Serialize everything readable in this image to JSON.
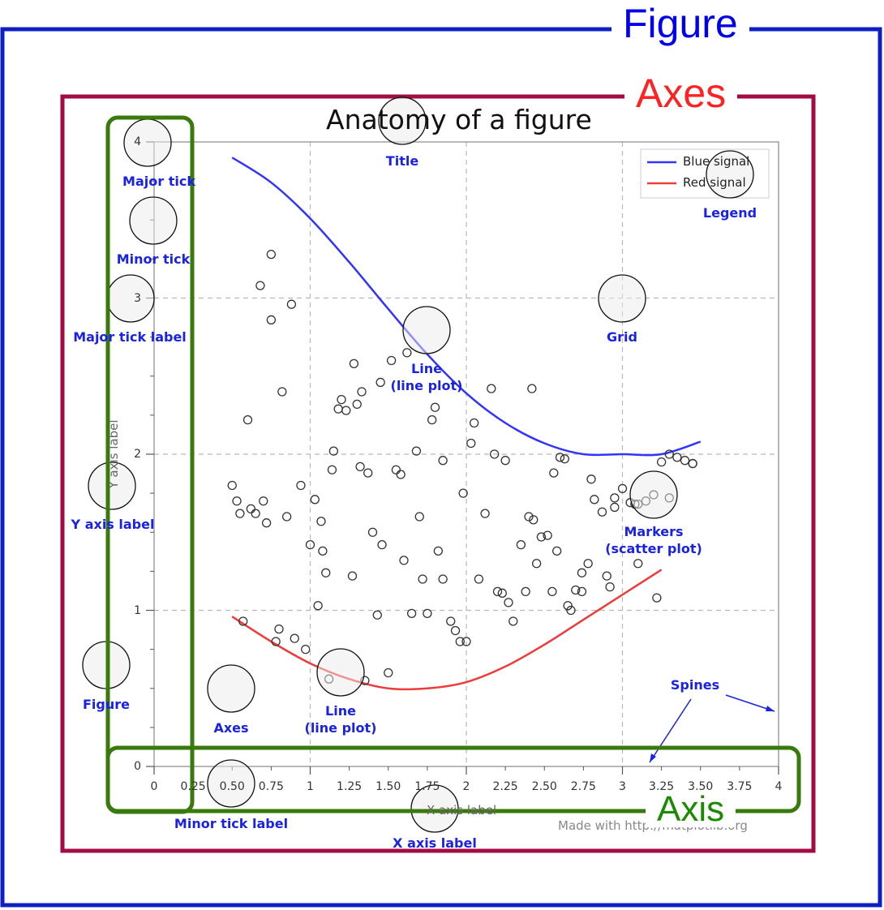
{
  "colors": {
    "figure_frame": "#0d1fc2",
    "axes_frame": "#a30b45",
    "axis_frame": "#3a7a0c",
    "annotation": "#1a22e6",
    "blue_signal": "#3333ff",
    "red_signal": "#ee3b3b",
    "grid": "#b8b8b8",
    "spines": "#a0a0a0",
    "markers": "#333333",
    "figure_label": "#0000ee",
    "axes_label": "#ff2222",
    "axis_label": "#1a8a00"
  },
  "frames": {
    "figure_label": "Figure",
    "axes_label": "Axes",
    "axis_label": "Axis"
  },
  "chart_data": {
    "type": "line",
    "title": "Anatomy of a figure",
    "xlabel": "X axis label",
    "ylabel": "Y axis label",
    "xlim": [
      0,
      4
    ],
    "ylim": [
      0,
      4
    ],
    "major_x_ticks": [
      "0",
      "1",
      "2",
      "3",
      "4"
    ],
    "minor_x_ticks": [
      "0.25",
      "0.50",
      "0.75",
      "1.25",
      "1.50",
      "1.75",
      "2.25",
      "2.50",
      "2.75",
      "3.25",
      "3.50",
      "3.75"
    ],
    "major_y_ticks": [
      "0",
      "1",
      "2",
      "3",
      "4"
    ],
    "grid": true,
    "legend_placement": "top-right",
    "series": [
      {
        "name": "Blue signal",
        "color": "#3333ff",
        "x": [
          0.5,
          0.75,
          1.0,
          1.25,
          1.5,
          1.75,
          2.0,
          2.25,
          2.5,
          2.75,
          3.0,
          3.25,
          3.5
        ],
        "y": [
          3.9,
          3.74,
          3.51,
          3.23,
          2.93,
          2.64,
          2.39,
          2.2,
          2.07,
          2.0,
          2.0,
          2.0,
          2.08
        ]
      },
      {
        "name": "Red signal",
        "color": "#ee3b3b",
        "x": [
          0.5,
          0.75,
          1.0,
          1.25,
          1.5,
          1.75,
          2.0,
          2.25,
          2.5,
          2.75,
          3.0,
          3.25
        ],
        "y": [
          0.96,
          0.8,
          0.66,
          0.56,
          0.5,
          0.5,
          0.54,
          0.64,
          0.78,
          0.94,
          1.1,
          1.26
        ]
      }
    ],
    "scatter": {
      "x": [
        0.5,
        0.53,
        0.57,
        0.62,
        0.68,
        0.72,
        0.75,
        0.78,
        0.82,
        0.85,
        0.9,
        0.94,
        0.97,
        1.0,
        1.03,
        1.07,
        1.08,
        1.12,
        1.14,
        1.18,
        1.2,
        1.23,
        1.27,
        1.3,
        1.32,
        1.35,
        1.37,
        1.4,
        1.43,
        1.46,
        1.5,
        1.55,
        1.58,
        1.62,
        1.65,
        1.68,
        1.72,
        1.75,
        1.78,
        1.82,
        1.85,
        1.9,
        1.93,
        1.96,
        2.0,
        2.03,
        2.08,
        2.12,
        2.16,
        2.2,
        2.23,
        2.27,
        2.3,
        2.35,
        2.38,
        2.42,
        2.45,
        2.48,
        2.52,
        2.56,
        2.6,
        2.63,
        2.67,
        2.7,
        2.74,
        2.78,
        2.82,
        2.87,
        2.9,
        2.95,
        3.0,
        3.05,
        3.1,
        3.15,
        3.2,
        3.25,
        3.3,
        3.35,
        3.4,
        3.45,
        0.6,
        0.65,
        0.7,
        0.8,
        1.1,
        1.28,
        1.45,
        1.6,
        1.7,
        1.85,
        2.05,
        2.25,
        2.4,
        2.55,
        2.65,
        2.8,
        2.95,
        3.1,
        3.3,
        3.45,
        0.55,
        0.75,
        0.88,
        1.05,
        1.15,
        1.33,
        1.52,
        1.8,
        1.98,
        2.18,
        2.43,
        2.58,
        2.74,
        2.92,
        3.08,
        3.22
      ],
      "y": [
        1.8,
        1.7,
        0.93,
        1.65,
        3.08,
        1.56,
        2.86,
        0.8,
        2.4,
        1.6,
        0.82,
        1.8,
        0.75,
        1.42,
        1.71,
        1.57,
        1.38,
        0.56,
        1.9,
        2.29,
        2.35,
        2.28,
        1.22,
        2.32,
        1.92,
        0.55,
        1.88,
        1.5,
        0.97,
        1.42,
        0.6,
        1.9,
        1.87,
        2.65,
        0.98,
        2.02,
        1.2,
        0.98,
        2.22,
        1.38,
        1.96,
        0.93,
        0.87,
        0.8,
        0.8,
        2.07,
        1.2,
        1.62,
        2.42,
        1.12,
        1.11,
        1.05,
        0.93,
        1.42,
        1.12,
        2.42,
        1.3,
        1.47,
        1.48,
        1.88,
        1.98,
        1.97,
        1.0,
        1.13,
        1.24,
        1.3,
        1.71,
        1.63,
        1.22,
        1.72,
        1.78,
        1.69,
        1.68,
        1.7,
        1.74,
        1.95,
        2.0,
        1.98,
        1.96,
        1.94,
        2.22,
        1.62,
        1.7,
        0.88,
        1.24,
        2.58,
        2.46,
        1.32,
        1.6,
        1.2,
        2.2,
        1.96,
        1.6,
        1.12,
        1.03,
        1.84,
        1.66,
        1.3,
        1.72,
        1.94,
        1.62,
        3.28,
        2.96,
        1.03,
        2.02,
        2.4,
        2.6,
        2.3,
        1.75,
        2.0,
        1.58,
        1.38,
        1.12,
        1.15,
        1.68,
        1.08
      ]
    }
  },
  "legend": {
    "entries": [
      {
        "label": "Blue signal",
        "color": "#3333ff"
      },
      {
        "label": "Red signal",
        "color": "#ee3b3b"
      }
    ]
  },
  "annotations": {
    "major_tick": "Major tick",
    "minor_tick": "Minor tick",
    "major_tick_label": "Major tick label",
    "y_axis_label": "Y axis label",
    "figure": "Figure",
    "axes": "Axes",
    "title": "Title",
    "legend": "Legend",
    "grid": "Grid",
    "line_upper": "Line\n(line plot)",
    "line_lower": "Line\n(line plot)",
    "markers": "Markers\n(scatter plot)",
    "spines": "Spines",
    "minor_tick_label": "Minor tick label",
    "x_axis_label": "X axis label"
  },
  "footer": {
    "made_with": "Made with http://matplotlib.org"
  }
}
